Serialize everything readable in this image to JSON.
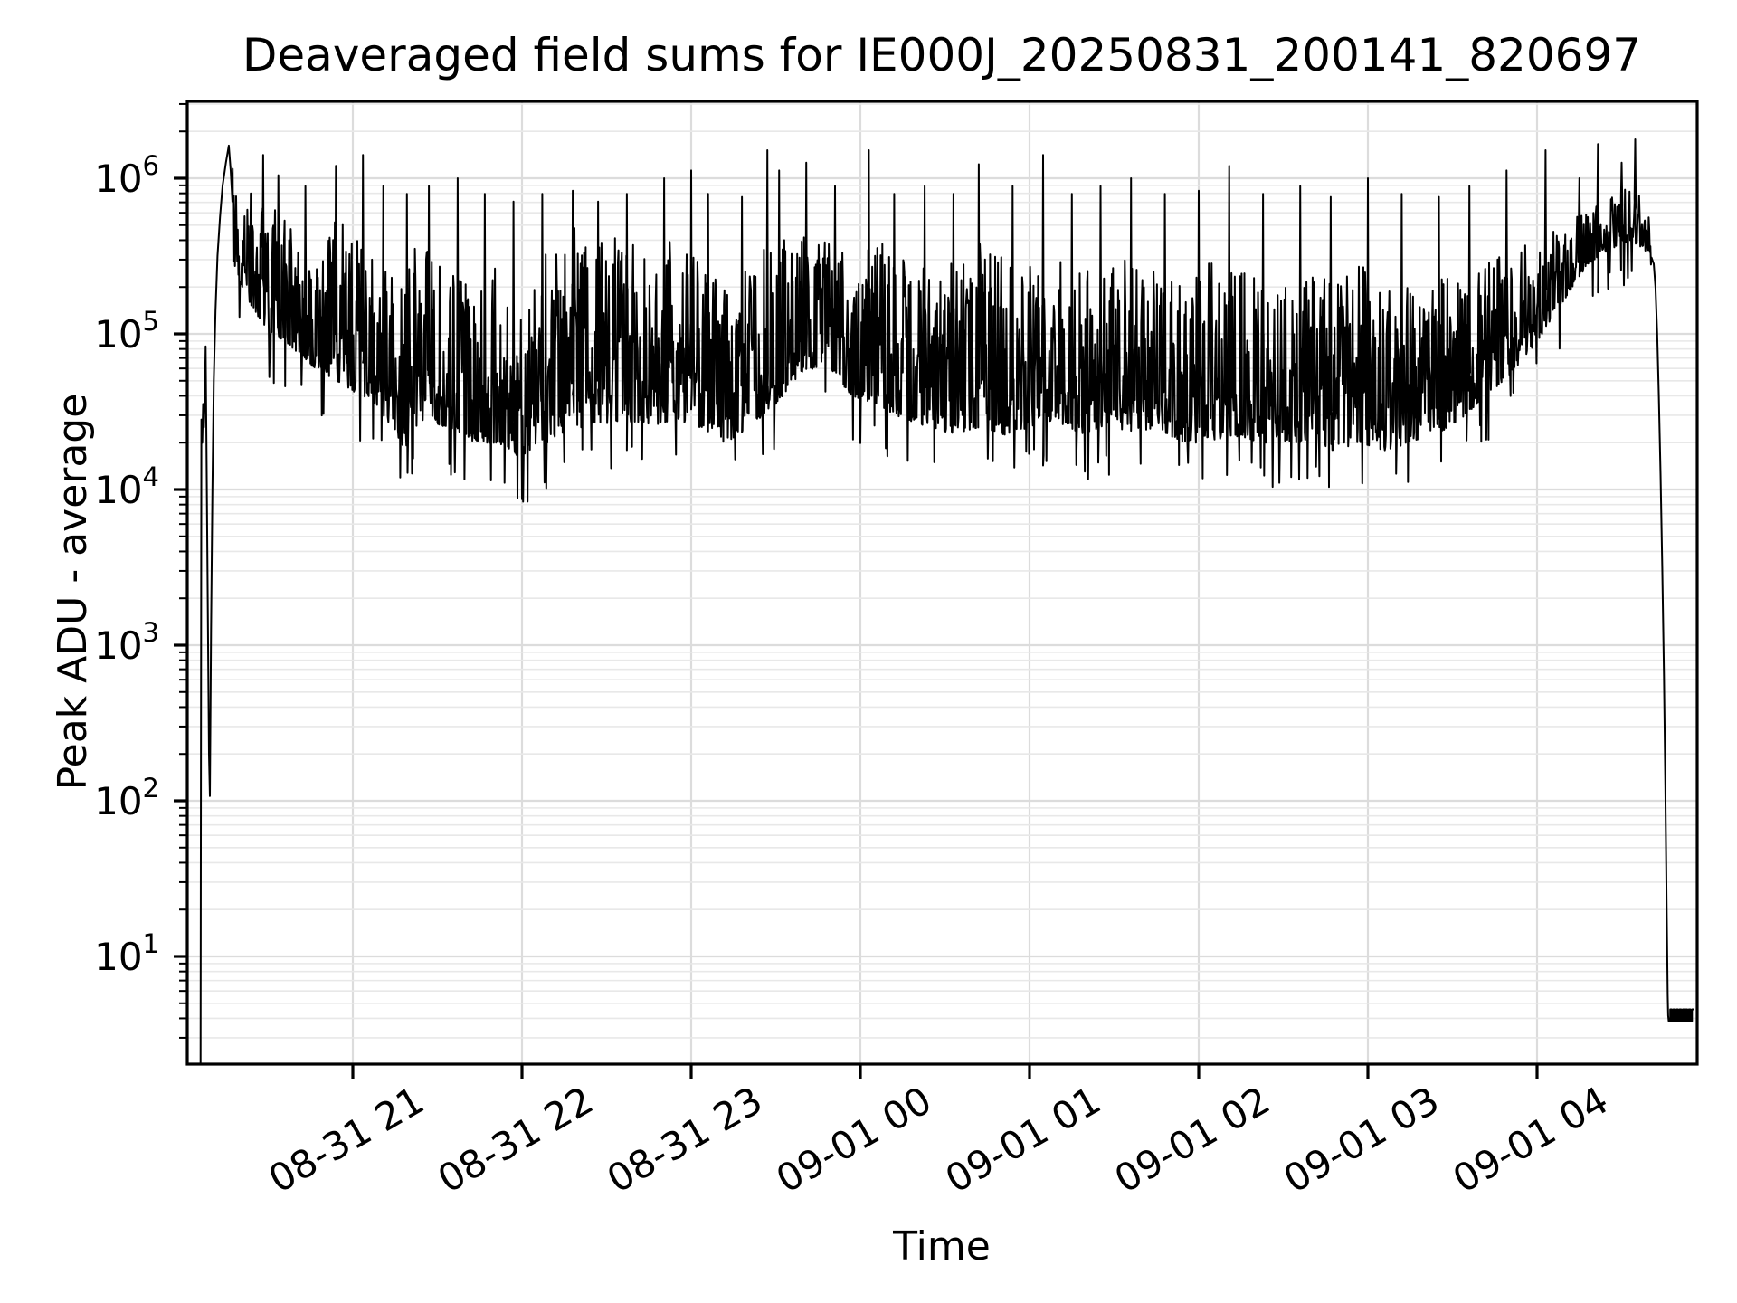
{
  "figure": {
    "background": "#ffffff"
  },
  "chart_data": {
    "type": "line",
    "title": "Deaveraged field sums for IE000J_20250831_200141_820697",
    "xlabel": "Time",
    "ylabel": "Peak ADU - average",
    "yscale": "log",
    "grid": true,
    "legend": false,
    "line_color": "#000000",
    "grid_major_color": "#dcdcdc",
    "grid_minor_color": "#e8e8e8",
    "spine_color": "#000000",
    "xlim_hours": [
      20.0214,
      28.9465
    ],
    "ylog_lim": [
      0.3081,
      6.4942
    ],
    "x_ticks": [
      {
        "hour": 21,
        "label": "08-31 21"
      },
      {
        "hour": 22,
        "label": "08-31 22"
      },
      {
        "hour": 23,
        "label": "08-31 23"
      },
      {
        "hour": 24,
        "label": "09-01 00"
      },
      {
        "hour": 25,
        "label": "09-01 01"
      },
      {
        "hour": 26,
        "label": "09-01 02"
      },
      {
        "hour": 27,
        "label": "09-01 03"
      },
      {
        "hour": 28,
        "label": "09-01 04"
      }
    ],
    "y_tick_exponents": [
      1,
      2,
      3,
      4,
      5,
      6
    ],
    "series": {
      "name": "deaveraged-field-sums",
      "head": [
        [
          20.1,
          0.31
        ],
        [
          20.105,
          4.45
        ],
        [
          20.11,
          4.3
        ],
        [
          20.115,
          4.55
        ],
        [
          20.12,
          4.4
        ],
        [
          20.125,
          4.6
        ],
        [
          20.13,
          4.92
        ],
        [
          20.135,
          4.3
        ],
        [
          20.142,
          3.3
        ],
        [
          20.15,
          2.3
        ],
        [
          20.155,
          2.03
        ],
        [
          20.162,
          3.1
        ],
        [
          20.17,
          4.0
        ],
        [
          20.178,
          4.7
        ],
        [
          20.188,
          5.15
        ],
        [
          20.2,
          5.5
        ],
        [
          20.215,
          5.75
        ],
        [
          20.23,
          5.95
        ],
        [
          20.25,
          6.1
        ],
        [
          20.267,
          6.21
        ],
        [
          20.278,
          6.05
        ],
        [
          20.288,
          5.85
        ]
      ],
      "envelope": [
        [
          20.29,
          5.45,
          6.18
        ],
        [
          20.33,
          5.3,
          6.0
        ],
        [
          20.42,
          5.15,
          5.9
        ],
        [
          20.5,
          5.0,
          5.85
        ],
        [
          20.6,
          4.95,
          5.75
        ],
        [
          20.75,
          4.8,
          5.6
        ],
        [
          20.9,
          4.7,
          5.75
        ],
        [
          21.05,
          4.6,
          5.6
        ],
        [
          21.2,
          4.45,
          5.45
        ],
        [
          21.3,
          4.25,
          5.35
        ],
        [
          21.4,
          4.45,
          5.7
        ],
        [
          21.55,
          4.4,
          5.55
        ],
        [
          21.7,
          4.3,
          5.3
        ],
        [
          21.85,
          4.3,
          5.45
        ],
        [
          22.0,
          4.2,
          5.1
        ],
        [
          22.15,
          4.3,
          5.6
        ],
        [
          22.3,
          4.4,
          5.7
        ],
        [
          22.45,
          4.4,
          5.6
        ],
        [
          22.6,
          4.45,
          5.65
        ],
        [
          22.75,
          4.4,
          5.5
        ],
        [
          22.9,
          4.45,
          5.65
        ],
        [
          23.05,
          4.4,
          5.5
        ],
        [
          23.2,
          4.3,
          5.35
        ],
        [
          23.35,
          4.4,
          5.5
        ],
        [
          23.5,
          4.55,
          5.6
        ],
        [
          23.65,
          4.75,
          5.65
        ],
        [
          23.8,
          4.8,
          5.6
        ],
        [
          23.95,
          4.6,
          5.5
        ],
        [
          24.1,
          4.55,
          5.6
        ],
        [
          24.25,
          4.45,
          5.5
        ],
        [
          24.4,
          4.4,
          5.45
        ],
        [
          24.55,
          4.35,
          5.5
        ],
        [
          24.7,
          4.4,
          5.6
        ],
        [
          24.85,
          4.35,
          5.5
        ],
        [
          25.0,
          4.4,
          5.6
        ],
        [
          25.15,
          4.45,
          5.5
        ],
        [
          25.3,
          4.35,
          5.4
        ],
        [
          25.45,
          4.4,
          5.55
        ],
        [
          25.6,
          4.35,
          5.45
        ],
        [
          25.75,
          4.4,
          5.4
        ],
        [
          25.9,
          4.3,
          5.3
        ],
        [
          26.05,
          4.3,
          5.45
        ],
        [
          26.2,
          4.35,
          5.5
        ],
        [
          26.35,
          4.3,
          5.35
        ],
        [
          26.5,
          4.3,
          5.3
        ],
        [
          26.65,
          4.3,
          5.4
        ],
        [
          26.8,
          4.25,
          5.35
        ],
        [
          26.95,
          4.3,
          5.45
        ],
        [
          27.1,
          4.25,
          5.35
        ],
        [
          27.25,
          4.3,
          5.3
        ],
        [
          27.4,
          4.35,
          5.4
        ],
        [
          27.55,
          4.45,
          5.45
        ],
        [
          27.7,
          4.6,
          5.5
        ],
        [
          27.85,
          4.75,
          5.55
        ],
        [
          28.0,
          4.95,
          5.6
        ],
        [
          28.15,
          5.2,
          5.7
        ],
        [
          28.3,
          5.45,
          5.8
        ],
        [
          28.45,
          5.55,
          5.9
        ],
        [
          28.55,
          5.6,
          5.95
        ],
        [
          28.65,
          5.5,
          5.85
        ],
        [
          28.68,
          5.4,
          5.7
        ]
      ],
      "spikes": [
        [
          20.47,
          6.15
        ],
        [
          20.56,
          6.02
        ],
        [
          20.72,
          5.95
        ],
        [
          20.9,
          6.08
        ],
        [
          21.06,
          6.15
        ],
        [
          21.18,
          5.95
        ],
        [
          21.32,
          5.9
        ],
        [
          21.45,
          5.95
        ],
        [
          21.62,
          6.0
        ],
        [
          21.78,
          5.9
        ],
        [
          21.95,
          5.85
        ],
        [
          22.12,
          5.9
        ],
        [
          22.3,
          5.92
        ],
        [
          22.45,
          5.85
        ],
        [
          22.62,
          5.9
        ],
        [
          22.84,
          6.0
        ],
        [
          23.0,
          6.05
        ],
        [
          23.1,
          5.9
        ],
        [
          23.3,
          5.88
        ],
        [
          23.45,
          6.18
        ],
        [
          23.52,
          6.05
        ],
        [
          23.68,
          6.1
        ],
        [
          23.85,
          5.95
        ],
        [
          24.05,
          6.18
        ],
        [
          24.2,
          5.9
        ],
        [
          24.38,
          5.95
        ],
        [
          24.55,
          5.9
        ],
        [
          24.7,
          6.09
        ],
        [
          24.9,
          5.95
        ],
        [
          25.08,
          6.15
        ],
        [
          25.25,
          5.9
        ],
        [
          25.42,
          5.95
        ],
        [
          25.6,
          6.0
        ],
        [
          25.8,
          5.9
        ],
        [
          26.0,
          5.92
        ],
        [
          26.18,
          6.08
        ],
        [
          26.38,
          5.9
        ],
        [
          26.6,
          5.95
        ],
        [
          26.78,
          5.88
        ],
        [
          27.0,
          6.0
        ],
        [
          27.2,
          5.9
        ],
        [
          27.42,
          5.88
        ],
        [
          27.6,
          5.95
        ],
        [
          27.82,
          6.05
        ],
        [
          28.05,
          6.18
        ],
        [
          28.25,
          6.0
        ],
        [
          28.36,
          6.22
        ],
        [
          28.5,
          6.1
        ],
        [
          28.58,
          6.25
        ]
      ],
      "tail": [
        [
          28.69,
          5.45
        ],
        [
          28.7,
          5.3
        ],
        [
          28.71,
          5.0
        ],
        [
          28.72,
          4.6
        ],
        [
          28.73,
          4.1
        ],
        [
          28.74,
          3.5
        ],
        [
          28.75,
          2.8
        ],
        [
          28.758,
          2.1
        ],
        [
          28.765,
          1.4
        ],
        [
          28.772,
          0.75
        ],
        [
          28.775,
          0.62
        ]
      ],
      "comb": {
        "t_start": 28.778,
        "t_end": 28.925,
        "base": 0.585,
        "top": 0.66,
        "steps": 16
      },
      "noise": {
        "seed": 20250831,
        "points_per_hour": 300,
        "dip_chance": 0.04,
        "bias_pow": 1.9
      }
    }
  }
}
